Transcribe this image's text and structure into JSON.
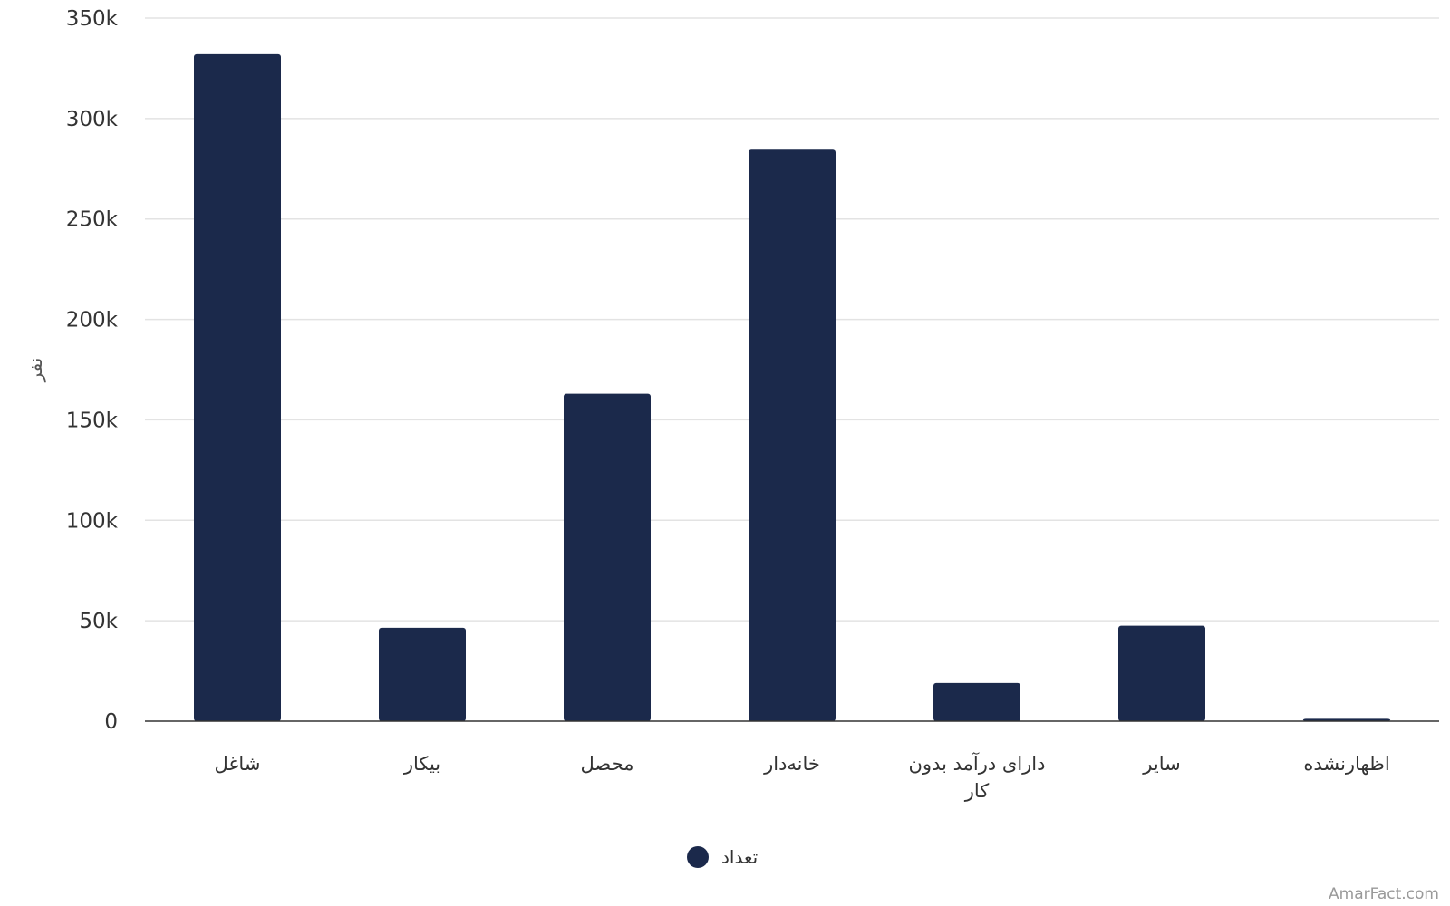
{
  "chart_data": {
    "type": "bar",
    "categories": [
      "شاغل",
      "بیکار",
      "محصل",
      "خانه‌دار",
      "دارای درآمد بدون کار",
      "سایر",
      "اظهارنشده"
    ],
    "category_lines": [
      [
        "شاغل"
      ],
      [
        "بیکار"
      ],
      [
        "محصل"
      ],
      [
        "خانه‌دار"
      ],
      [
        "دارای درآمد بدون",
        "کار"
      ],
      [
        "سایر"
      ],
      [
        "اظهارنشده"
      ]
    ],
    "series": [
      {
        "name": "تعداد",
        "color": "#1b294b",
        "values": [
          332000,
          46500,
          163000,
          284500,
          19000,
          47500,
          1200
        ]
      }
    ],
    "ylabel": "نفر",
    "ylim": [
      0,
      350000
    ],
    "yticks": [
      0,
      50000,
      100000,
      150000,
      200000,
      250000,
      300000,
      350000
    ],
    "ytick_labels": [
      "0",
      "50k",
      "100k",
      "150k",
      "200k",
      "250k",
      "300k",
      "350k"
    ],
    "grid": true,
    "legend": "bottom-center"
  },
  "credit": "AmarFact.com"
}
